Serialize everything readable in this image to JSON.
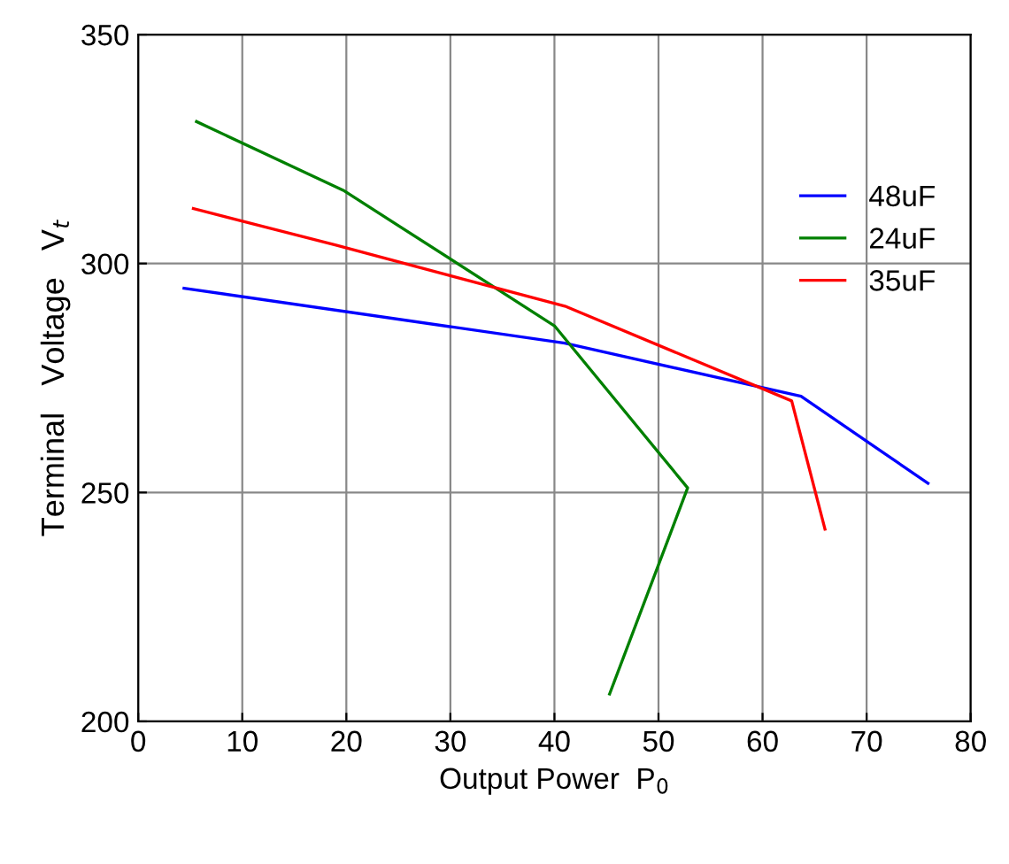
{
  "chart_data": {
    "type": "line",
    "xlabel": "Output Power  P$_{0}$",
    "ylabel": "Terminal   Voltage   V$_{t}$",
    "xlim": [
      0,
      80
    ],
    "ylim": [
      200,
      350
    ],
    "xticks": [
      0,
      10,
      20,
      30,
      40,
      50,
      60,
      70,
      80
    ],
    "yticks": [
      200,
      250,
      300,
      350
    ],
    "grid": true,
    "legend": "top right",
    "marker": "none",
    "line_style": "solid",
    "series": [
      {
        "name": "48uF",
        "color": "#0000ff",
        "x": [
          4.4,
          41,
          63.7,
          75.9
        ],
        "values": [
          294.6,
          282.6,
          271,
          252
        ]
      },
      {
        "name": "24uF",
        "color": "#008000",
        "x": [
          5.6,
          19.7,
          40,
          52.8,
          45.3
        ],
        "values": [
          331,
          316,
          286.4,
          251,
          206
        ]
      },
      {
        "name": "35uF",
        "color": "#ff0000",
        "x": [
          5.3,
          19,
          41,
          62.8,
          66
        ],
        "values": [
          312,
          304,
          290.7,
          270,
          242
        ]
      }
    ]
  }
}
